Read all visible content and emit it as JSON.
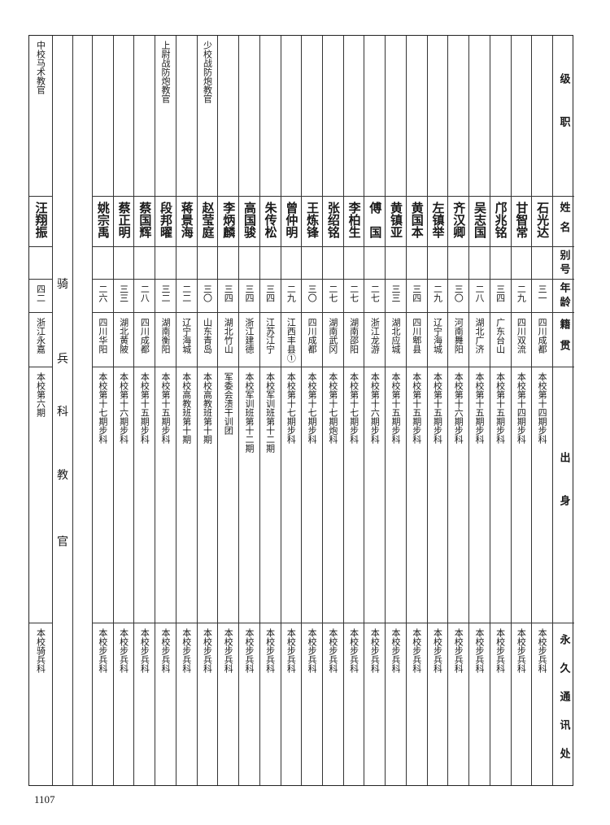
{
  "header": {
    "rank": "级职",
    "name": "姓名",
    "alias": "别号",
    "age": "年龄",
    "origin": "籍贯",
    "background": "出身",
    "address": "永久通讯处"
  },
  "section_label": [
    "骑",
    "兵",
    "科",
    "教",
    "官"
  ],
  "persons": [
    {
      "rank": "",
      "name": "石光达",
      "alias": "",
      "age": "三一",
      "origin": "四川成都",
      "background": "本校第十四期步科",
      "address": "本校步兵科"
    },
    {
      "rank": "",
      "name": "甘智常",
      "alias": "",
      "age": "二九",
      "origin": "四川双流",
      "background": "本校第十四期步科",
      "address": "本校步兵科"
    },
    {
      "rank": "",
      "name": "邝兆铭",
      "alias": "",
      "age": "三四",
      "origin": "广东台山",
      "background": "本校第十五期步科",
      "address": "本校步兵科"
    },
    {
      "rank": "",
      "name": "吴志国",
      "alias": "",
      "age": "二八",
      "origin": "湖北广济",
      "background": "本校第十五期步科",
      "address": "本校步兵科"
    },
    {
      "rank": "",
      "name": "齐汉卿",
      "alias": "",
      "age": "三〇",
      "origin": "河南舞阳",
      "background": "本校第十六期步科",
      "address": "本校步兵科"
    },
    {
      "rank": "",
      "name": "左镇举",
      "alias": "",
      "age": "二九",
      "origin": "辽宁海城",
      "background": "本校第十五期步科",
      "address": "本校步兵科"
    },
    {
      "rank": "",
      "name": "黄国本",
      "alias": "",
      "age": "三四",
      "origin": "四川郫县",
      "background": "本校第十五期步科",
      "address": "本校步兵科"
    },
    {
      "rank": "",
      "name": "黄镇亚",
      "alias": "",
      "age": "三三",
      "origin": "湖北应城",
      "background": "本校第十五期步科",
      "address": "本校步兵科"
    },
    {
      "rank": "",
      "name": "傅　国",
      "alias": "",
      "age": "二七",
      "origin": "浙江龙游",
      "background": "本校第十六期步科",
      "address": "本校步兵科"
    },
    {
      "rank": "",
      "name": "李柏生",
      "alias": "",
      "age": "二七",
      "origin": "湖南邵阳",
      "background": "本校第十七期步科",
      "address": "本校步兵科"
    },
    {
      "rank": "",
      "name": "张绍铭",
      "alias": "",
      "age": "二七",
      "origin": "湖南武冈",
      "background": "本校第十七期炮科",
      "address": "本校步兵科"
    },
    {
      "rank": "",
      "name": "王炼锋",
      "alias": "",
      "age": "三〇",
      "origin": "四川成都",
      "background": "本校第十七期步科",
      "address": "本校步兵科"
    },
    {
      "rank": "",
      "name": "曾仲明",
      "alias": "",
      "age": "二九",
      "origin": "江西丰县①",
      "background": "本校第十七期步科",
      "address": "本校步兵科"
    },
    {
      "rank": "",
      "name": "朱传松",
      "alias": "",
      "age": "三四",
      "origin": "江苏江宁",
      "background": "本校军训班第十二期",
      "address": "本校步兵科"
    },
    {
      "rank": "",
      "name": "高国骏",
      "alias": "",
      "age": "三四",
      "origin": "浙江建德",
      "background": "本校军训班第十二期",
      "address": "本校步兵科"
    },
    {
      "rank": "",
      "name": "李炳麟",
      "alias": "",
      "age": "三四",
      "origin": "湖北竹山",
      "background": "军委会溃干训团",
      "address": "本校步兵科"
    },
    {
      "rank": "少校战防炮教官",
      "name": "赵莹庭",
      "alias": "",
      "age": "三〇",
      "origin": "山东青岛",
      "background": "本校高教班第十期",
      "address": "本校步兵科"
    },
    {
      "rank": "",
      "name": "蒋景海",
      "alias": "",
      "age": "二二",
      "origin": "辽宁海城",
      "background": "本校高教班第十期",
      "address": "本校步兵科"
    },
    {
      "rank": "上尉战防炮教官",
      "name": "段邦曜",
      "alias": "",
      "age": "三二",
      "origin": "湖南衡阳",
      "background": "本校第十五期步科",
      "address": "本校步兵科"
    },
    {
      "rank": "",
      "name": "蔡国辉",
      "alias": "",
      "age": "二八",
      "origin": "四川成都",
      "background": "本校第十五期步科",
      "address": "本校步兵科"
    },
    {
      "rank": "",
      "name": "蔡正明",
      "alias": "",
      "age": "三三",
      "origin": "湖北黄陂",
      "background": "本校第十六期步科",
      "address": "本校步兵科"
    },
    {
      "rank": "",
      "name": "姚宗禹",
      "alias": "",
      "age": "二六",
      "origin": "四川华阳",
      "background": "本校第十七期步科",
      "address": "本校步兵科"
    }
  ],
  "cavalry_person": {
    "rank": "中校马术教官",
    "name": "汪翔振",
    "alias": "",
    "age": "四二",
    "origin": "浙江永嘉",
    "background": "本校第六期",
    "address": "本校骑兵科"
  },
  "page_number": "1107"
}
